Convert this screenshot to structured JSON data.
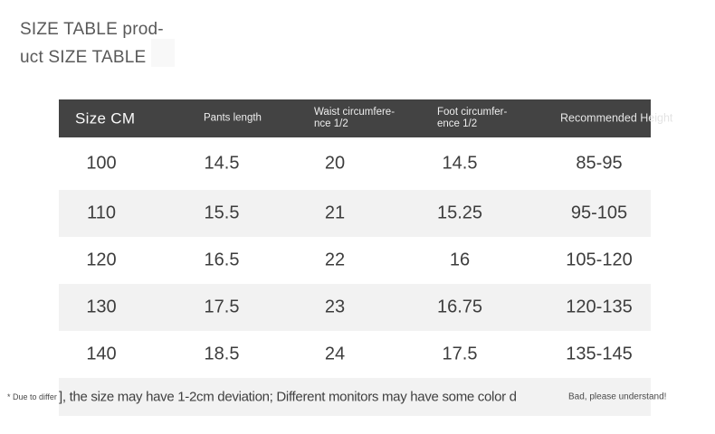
{
  "title": {
    "line1": "SIZE TABLE prod-",
    "line2": "uct SIZE TABLE"
  },
  "size_table": {
    "header": {
      "col1": "Size CM",
      "col2": "Pants length",
      "col3_line1": "Waist circumfere-",
      "col3_line2": "nce 1/2",
      "col4_line1": "Foot circumfer-",
      "col4_line2": "ence 1/2",
      "col5": "Recommended Height"
    },
    "rows": [
      [
        "100",
        "14.5",
        "20",
        "14.5",
        "85-95"
      ],
      [
        "110",
        "15.5",
        "21",
        "15.25",
        "95-105"
      ],
      [
        "120",
        "16.5",
        "22",
        "16",
        "105-120"
      ],
      [
        "130",
        "17.5",
        "23",
        "16.75",
        "120-135"
      ],
      [
        "140",
        "18.5",
        "24",
        "17.5",
        "135-145"
      ]
    ]
  },
  "footnote": {
    "left_fragment": "* Due to differ",
    "main_text": "], the size may have 1-2cm deviation; Different monitors may have some color d",
    "right_fragment": "Bad, please understand!"
  },
  "colors": {
    "header_bg": "#434343",
    "header_text": "#ededed",
    "stripe_bg": "#f2f2f2",
    "body_text": "#3d3d3d",
    "title_text": "#595959",
    "footnote_text": "#4a4a4a"
  }
}
